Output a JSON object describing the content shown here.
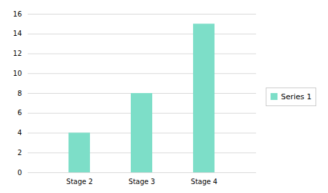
{
  "chart_data": {
    "type": "bar",
    "categories": [
      "Stage 2",
      "Stage 3",
      "Stage 4"
    ],
    "series": [
      {
        "name": "Series 1",
        "color": "#7DDEC8",
        "values": [
          4,
          8,
          15
        ]
      }
    ],
    "ylim": [
      0,
      16
    ],
    "yticks": [
      0,
      2,
      4,
      6,
      8,
      10,
      12,
      14,
      16
    ],
    "grid": true,
    "legend": "right"
  }
}
